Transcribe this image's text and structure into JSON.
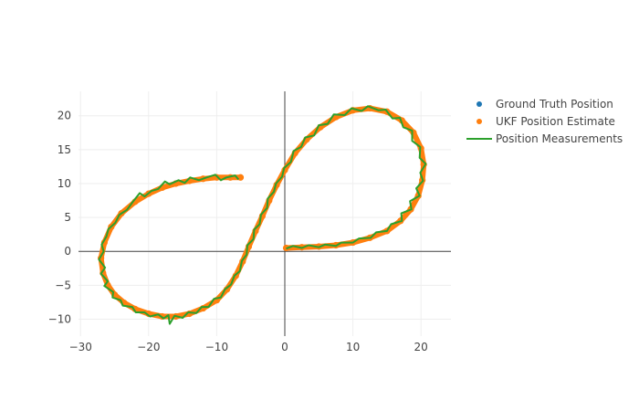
{
  "chart_data": {
    "type": "scatter",
    "title": "",
    "xlabel": "",
    "ylabel": "",
    "xlim": [
      -30.3,
      24.4
    ],
    "ylim": [
      -12.5,
      23.6
    ],
    "x_ticks": [
      -30,
      -20,
      -10,
      0,
      10,
      20
    ],
    "y_ticks": [
      -10,
      -5,
      0,
      5,
      10,
      15,
      20
    ],
    "x_tick_labels": [
      "−30",
      "−20",
      "−10",
      "0",
      "10",
      "20"
    ],
    "y_tick_labels": [
      "−10",
      "−5",
      "0",
      "5",
      "10",
      "15",
      "20"
    ],
    "grid": true,
    "zero_lines": true,
    "legend_position": "top-right",
    "colors": {
      "ground_truth": "#1f77b4",
      "ukf_estimate": "#ff7f0e",
      "measurements": "#2ca02c",
      "grid": "#eeeeee",
      "zero_line": "#444444"
    },
    "series": [
      {
        "name": "Ground Truth Position",
        "mode": "markers",
        "points": [
          [
            -6.5,
            10.9
          ],
          [
            -8,
            10.9
          ],
          [
            -10,
            10.9
          ],
          [
            -12,
            10.7
          ],
          [
            -14,
            10.4
          ],
          [
            -16,
            10.0
          ],
          [
            -18,
            9.4
          ],
          [
            -20,
            8.5
          ],
          [
            -22,
            7.3
          ],
          [
            -24,
            5.6
          ],
          [
            -25.5,
            3.6
          ],
          [
            -26.5,
            1.3
          ],
          [
            -27,
            -1.0
          ],
          [
            -26.7,
            -3.2
          ],
          [
            -26,
            -5.0
          ],
          [
            -25,
            -6.4
          ],
          [
            -23.6,
            -7.6
          ],
          [
            -22,
            -8.5
          ],
          [
            -20,
            -9.2
          ],
          [
            -18,
            -9.6
          ],
          [
            -16,
            -9.6
          ],
          [
            -14,
            -9.2
          ],
          [
            -12,
            -8.4
          ],
          [
            -10,
            -7.2
          ],
          [
            -8.5,
            -5.6
          ],
          [
            -7.2,
            -3.6
          ],
          [
            -6.2,
            -1.5
          ],
          [
            -5.3,
            0.7
          ],
          [
            -4.3,
            3.0
          ],
          [
            -3.3,
            5.2
          ],
          [
            -2.3,
            7.5
          ],
          [
            -1.2,
            9.8
          ],
          [
            0,
            12.0
          ],
          [
            1.5,
            14.5
          ],
          [
            3.2,
            16.5
          ],
          [
            5.2,
            18.3
          ],
          [
            7.5,
            19.8
          ],
          [
            10,
            20.8
          ],
          [
            12.5,
            21.1
          ],
          [
            15,
            20.6
          ],
          [
            17.2,
            19.3
          ],
          [
            18.9,
            17.5
          ],
          [
            20.0,
            15.2
          ],
          [
            20.4,
            12.8
          ],
          [
            20.2,
            10.5
          ],
          [
            19.6,
            8.2
          ],
          [
            18.5,
            6.2
          ],
          [
            17.0,
            4.5
          ],
          [
            15.0,
            3.0
          ],
          [
            12.5,
            2.0
          ],
          [
            10,
            1.3
          ],
          [
            7.5,
            0.9
          ],
          [
            5,
            0.7
          ],
          [
            2.5,
            0.6
          ],
          [
            0.2,
            0.5
          ]
        ]
      },
      {
        "name": "UKF Position Estimate",
        "mode": "markers",
        "points": [
          [
            -6.5,
            10.9
          ],
          [
            -8,
            10.9
          ],
          [
            -10,
            10.9
          ],
          [
            -12,
            10.7
          ],
          [
            -14,
            10.4
          ],
          [
            -16,
            10.0
          ],
          [
            -18,
            9.4
          ],
          [
            -20,
            8.5
          ],
          [
            -22,
            7.3
          ],
          [
            -24,
            5.6
          ],
          [
            -25.5,
            3.6
          ],
          [
            -26.5,
            1.3
          ],
          [
            -27,
            -1.0
          ],
          [
            -26.7,
            -3.2
          ],
          [
            -26,
            -5.0
          ],
          [
            -25,
            -6.4
          ],
          [
            -23.6,
            -7.6
          ],
          [
            -22,
            -8.5
          ],
          [
            -20,
            -9.2
          ],
          [
            -18,
            -9.6
          ],
          [
            -16,
            -9.6
          ],
          [
            -14,
            -9.2
          ],
          [
            -12,
            -8.4
          ],
          [
            -10,
            -7.2
          ],
          [
            -8.5,
            -5.6
          ],
          [
            -7.2,
            -3.6
          ],
          [
            -6.2,
            -1.5
          ],
          [
            -5.3,
            0.7
          ],
          [
            -4.3,
            3.0
          ],
          [
            -3.3,
            5.2
          ],
          [
            -2.3,
            7.5
          ],
          [
            -1.2,
            9.8
          ],
          [
            0,
            12.0
          ],
          [
            1.5,
            14.5
          ],
          [
            3.2,
            16.5
          ],
          [
            5.2,
            18.3
          ],
          [
            7.5,
            19.8
          ],
          [
            10,
            20.8
          ],
          [
            12.5,
            21.1
          ],
          [
            15,
            20.6
          ],
          [
            17.2,
            19.3
          ],
          [
            18.9,
            17.5
          ],
          [
            20.0,
            15.2
          ],
          [
            20.4,
            12.8
          ],
          [
            20.2,
            10.5
          ],
          [
            19.6,
            8.2
          ],
          [
            18.5,
            6.2
          ],
          [
            17.0,
            4.5
          ],
          [
            15.0,
            3.0
          ],
          [
            12.5,
            2.0
          ],
          [
            10,
            1.3
          ],
          [
            7.5,
            0.9
          ],
          [
            5,
            0.7
          ],
          [
            2.5,
            0.6
          ],
          [
            0.2,
            0.5
          ]
        ]
      },
      {
        "name": "Position Measurements",
        "mode": "lines",
        "points": [
          [
            -6.8,
            10.6
          ],
          [
            -7.3,
            11.2
          ],
          [
            -8.6,
            10.9
          ],
          [
            -9.4,
            10.5
          ],
          [
            -10.2,
            11.3
          ],
          [
            -11.5,
            10.9
          ],
          [
            -12.6,
            10.5
          ],
          [
            -13.9,
            10.9
          ],
          [
            -14.7,
            10.1
          ],
          [
            -15.6,
            10.5
          ],
          [
            -16.9,
            9.9
          ],
          [
            -17.6,
            10.3
          ],
          [
            -18.6,
            9.2
          ],
          [
            -19.6,
            8.9
          ],
          [
            -20.6,
            8.1
          ],
          [
            -21.3,
            8.6
          ],
          [
            -22.4,
            7.2
          ],
          [
            -23.2,
            6.1
          ],
          [
            -24.3,
            5.4
          ],
          [
            -24.9,
            4.2
          ],
          [
            -25.9,
            3.3
          ],
          [
            -26.2,
            2.2
          ],
          [
            -26.9,
            1.0
          ],
          [
            -26.6,
            0.0
          ],
          [
            -27.3,
            -1.2
          ],
          [
            -26.4,
            -2.4
          ],
          [
            -27.0,
            -3.3
          ],
          [
            -26.0,
            -4.4
          ],
          [
            -26.5,
            -5.1
          ],
          [
            -25.2,
            -6.0
          ],
          [
            -25.3,
            -6.8
          ],
          [
            -24.1,
            -7.2
          ],
          [
            -23.8,
            -8.0
          ],
          [
            -22.4,
            -8.2
          ],
          [
            -21.9,
            -9.0
          ],
          [
            -20.6,
            -9.0
          ],
          [
            -19.8,
            -9.6
          ],
          [
            -18.6,
            -9.3
          ],
          [
            -17.8,
            -9.9
          ],
          [
            -17.1,
            -9.4
          ],
          [
            -16.9,
            -10.7
          ],
          [
            -16.2,
            -9.5
          ],
          [
            -15.0,
            -9.8
          ],
          [
            -14.2,
            -9.0
          ],
          [
            -13.0,
            -9.1
          ],
          [
            -12.2,
            -8.2
          ],
          [
            -11.2,
            -8.2
          ],
          [
            -10.4,
            -7.0
          ],
          [
            -9.4,
            -6.8
          ],
          [
            -8.8,
            -5.6
          ],
          [
            -7.9,
            -4.9
          ],
          [
            -7.4,
            -3.6
          ],
          [
            -6.6,
            -2.9
          ],
          [
            -6.3,
            -1.4
          ],
          [
            -5.6,
            -0.5
          ],
          [
            -5.5,
            0.9
          ],
          [
            -4.6,
            1.8
          ],
          [
            -4.5,
            3.2
          ],
          [
            -3.7,
            4.0
          ],
          [
            -3.5,
            5.4
          ],
          [
            -2.6,
            6.4
          ],
          [
            -2.5,
            7.8
          ],
          [
            -1.6,
            8.8
          ],
          [
            -1.3,
            10.0
          ],
          [
            -0.4,
            11.0
          ],
          [
            -0.1,
            12.3
          ],
          [
            0.9,
            13.2
          ],
          [
            1.3,
            14.8
          ],
          [
            2.4,
            15.4
          ],
          [
            3.0,
            16.8
          ],
          [
            4.3,
            17.1
          ],
          [
            5.0,
            18.6
          ],
          [
            6.3,
            18.8
          ],
          [
            7.2,
            20.2
          ],
          [
            8.8,
            20.1
          ],
          [
            9.8,
            21.1
          ],
          [
            11.3,
            20.7
          ],
          [
            12.2,
            21.4
          ],
          [
            13.8,
            20.8
          ],
          [
            14.8,
            20.9
          ],
          [
            15.8,
            19.6
          ],
          [
            16.9,
            19.7
          ],
          [
            17.4,
            18.3
          ],
          [
            18.7,
            17.8
          ],
          [
            18.7,
            16.3
          ],
          [
            19.9,
            15.4
          ],
          [
            19.8,
            13.8
          ],
          [
            20.7,
            12.9
          ],
          [
            19.9,
            11.6
          ],
          [
            20.3,
            10.4
          ],
          [
            19.3,
            9.3
          ],
          [
            19.8,
            8.2
          ],
          [
            18.4,
            7.4
          ],
          [
            18.6,
            6.2
          ],
          [
            17.1,
            5.6
          ],
          [
            17.2,
            4.5
          ],
          [
            15.6,
            4.0
          ],
          [
            15.0,
            3.0
          ],
          [
            13.4,
            2.8
          ],
          [
            12.6,
            2.0
          ],
          [
            10.9,
            1.9
          ],
          [
            10.0,
            1.3
          ],
          [
            8.3,
            1.3
          ],
          [
            7.5,
            0.8
          ],
          [
            5.9,
            1.0
          ],
          [
            5.0,
            0.6
          ],
          [
            3.5,
            0.9
          ],
          [
            2.5,
            0.5
          ],
          [
            1.2,
            0.8
          ],
          [
            0.2,
            0.4
          ]
        ]
      }
    ]
  }
}
